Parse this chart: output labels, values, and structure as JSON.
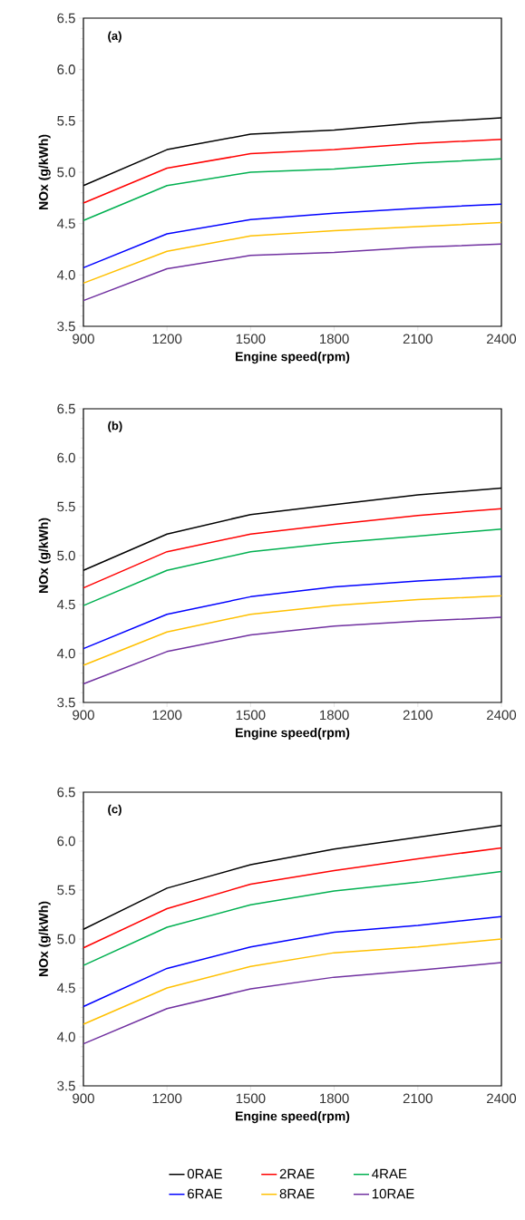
{
  "chart_data": [
    {
      "type": "line",
      "title": "(a)",
      "xlabel": "Engine speed(rpm)",
      "ylabel": "NOx (g/kWh)",
      "x": [
        900,
        1200,
        1500,
        1800,
        2100,
        2400
      ],
      "xlim": [
        900,
        2400
      ],
      "xticks": [
        900,
        1200,
        1500,
        1800,
        2100,
        2400
      ],
      "ylim": [
        3.5,
        6.5
      ],
      "yticks": [
        {
          "value": 3.5,
          "label": "3.5"
        },
        {
          "value": 4,
          "label": "4.0"
        },
        {
          "value": 4.5,
          "label": "4.5"
        },
        {
          "value": 5,
          "label": "5.0"
        },
        {
          "value": 5.5,
          "label": "5.5"
        },
        {
          "value": 6,
          "label": "6.0"
        },
        {
          "value": 6.5,
          "label": "6.5"
        }
      ],
      "series": [
        {
          "color": "#000000",
          "values": [
            4.87,
            5.22,
            5.37,
            5.41,
            5.48,
            5.53
          ]
        },
        {
          "color": "#ff0000",
          "values": [
            4.7,
            5.04,
            5.18,
            5.22,
            5.28,
            5.32
          ]
        },
        {
          "color": "#00b050",
          "values": [
            4.53,
            4.87,
            5.0,
            5.03,
            5.09,
            5.13
          ]
        },
        {
          "color": "#0000ff",
          "values": [
            4.07,
            4.4,
            4.54,
            4.6,
            4.65,
            4.69
          ]
        },
        {
          "color": "#ffc000",
          "values": [
            3.92,
            4.23,
            4.38,
            4.43,
            4.47,
            4.51
          ]
        },
        {
          "color": "#7030a0",
          "values": [
            3.75,
            4.06,
            4.19,
            4.22,
            4.27,
            4.3
          ]
        }
      ]
    },
    {
      "type": "line",
      "title": "(b)",
      "xlabel": "Engine speed(rpm)",
      "ylabel": "NOx (g/kWh)",
      "x": [
        900,
        1200,
        1500,
        1800,
        2100,
        2400
      ],
      "xlim": [
        900,
        2400
      ],
      "xticks": [
        900,
        1200,
        1500,
        1800,
        2100,
        2400
      ],
      "ylim": [
        3.5,
        6.5
      ],
      "yticks": [
        {
          "value": 3.5,
          "label": "3.5"
        },
        {
          "value": 4,
          "label": "4.0"
        },
        {
          "value": 4.5,
          "label": "4.5"
        },
        {
          "value": 5,
          "label": "5.0"
        },
        {
          "value": 5.5,
          "label": "5.5"
        },
        {
          "value": 6,
          "label": "6.0"
        },
        {
          "value": 6.5,
          "label": "6.5"
        }
      ],
      "series": [
        {
          "color": "#000000",
          "values": [
            4.85,
            5.22,
            5.42,
            5.52,
            5.62,
            5.69
          ]
        },
        {
          "color": "#ff0000",
          "values": [
            4.67,
            5.04,
            5.22,
            5.32,
            5.41,
            5.48
          ]
        },
        {
          "color": "#00b050",
          "values": [
            4.49,
            4.85,
            5.04,
            5.13,
            5.2,
            5.27
          ]
        },
        {
          "color": "#0000ff",
          "values": [
            4.05,
            4.4,
            4.58,
            4.68,
            4.74,
            4.79
          ]
        },
        {
          "color": "#ffc000",
          "values": [
            3.88,
            4.22,
            4.4,
            4.49,
            4.55,
            4.59
          ]
        },
        {
          "color": "#7030a0",
          "values": [
            3.69,
            4.02,
            4.19,
            4.28,
            4.33,
            4.37
          ]
        }
      ]
    },
    {
      "type": "line",
      "title": "(c)",
      "xlabel": "Engine speed(rpm)",
      "ylabel": "NOx (g/kWh)",
      "x": [
        900,
        1200,
        1500,
        1800,
        2100,
        2400
      ],
      "xlim": [
        900,
        2400
      ],
      "xticks": [
        900,
        1200,
        1500,
        1800,
        2100,
        2400
      ],
      "ylim": [
        3.5,
        6.5
      ],
      "yticks": [
        {
          "value": 3.5,
          "label": "3.5"
        },
        {
          "value": 4,
          "label": "4.0"
        },
        {
          "value": 4.5,
          "label": "4.5"
        },
        {
          "value": 5,
          "label": "5.0"
        },
        {
          "value": 5.5,
          "label": "5.5"
        },
        {
          "value": 6,
          "label": "6.0"
        },
        {
          "value": 6.5,
          "label": "6.5"
        }
      ],
      "legend": "bottom",
      "series": [
        {
          "name": "0RAE",
          "color": "#000000",
          "values": [
            5.1,
            5.52,
            5.76,
            5.92,
            6.04,
            6.16
          ]
        },
        {
          "name": "2RAE",
          "color": "#ff0000",
          "values": [
            4.91,
            5.31,
            5.56,
            5.7,
            5.82,
            5.93
          ]
        },
        {
          "name": "4RAE",
          "color": "#00b050",
          "values": [
            4.73,
            5.12,
            5.35,
            5.49,
            5.58,
            5.69
          ]
        },
        {
          "name": "6RAE",
          "color": "#0000ff",
          "values": [
            4.31,
            4.7,
            4.92,
            5.07,
            5.14,
            5.23
          ]
        },
        {
          "name": "8RAE",
          "color": "#ffc000",
          "values": [
            4.13,
            4.5,
            4.72,
            4.86,
            4.92,
            5.0
          ]
        },
        {
          "name": "10RAE",
          "color": "#7030a0",
          "values": [
            3.93,
            4.29,
            4.49,
            4.61,
            4.68,
            4.76
          ]
        }
      ]
    }
  ]
}
